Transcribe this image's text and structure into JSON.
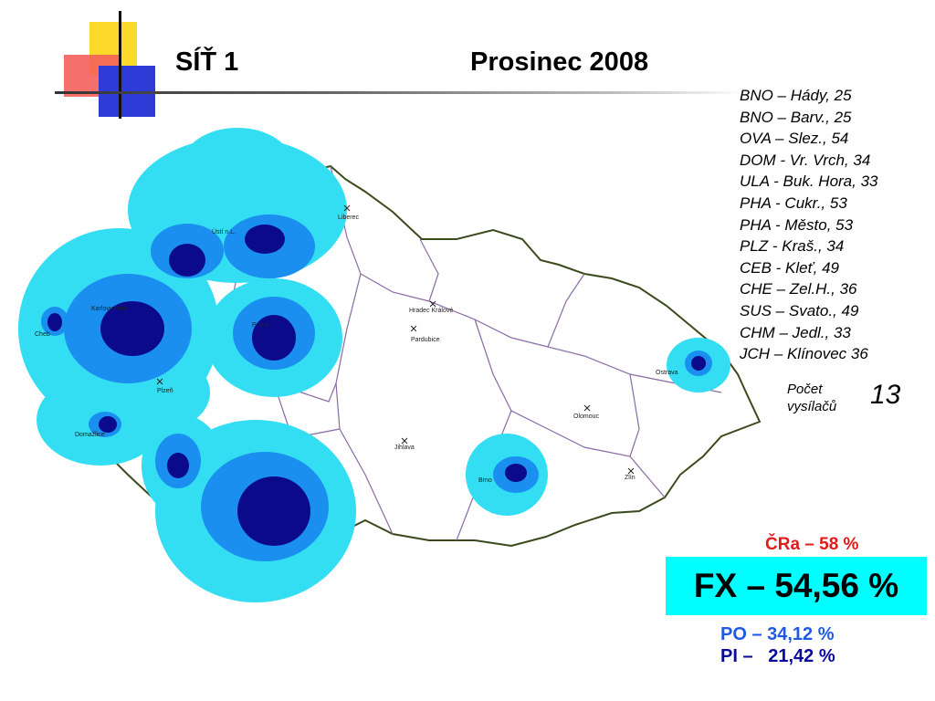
{
  "header": {
    "network": "SÍŤ 1",
    "date": "Prosinec 2008"
  },
  "transmitters": [
    "BNO – Hády, 25",
    "BNO – Barv., 25",
    "OVA – Slez., 54",
    "DOM - Vr. Vrch, 34",
    "ULA - Buk. Hora, 33",
    "PHA - Cukr., 53",
    "PHA - Město, 53",
    "PLZ - Kraš., 34",
    "CEB - Kleť, 49",
    "CHE – Zel.H., 36",
    "SUS – Svato., 49",
    "CHM – Jedl., 33",
    "JCH – Klínovec 36"
  ],
  "count": {
    "label_line1": "Počet",
    "label_line2": "vysílačů",
    "value": "13"
  },
  "coverage": {
    "cra": "ČRa – 58 %",
    "fx": "FX – 54,56 %",
    "po": "PO – 34,12 %",
    "pi": "PI –   21,42 %"
  },
  "map": {
    "cities": [
      "Liberec",
      "Hradec Králové",
      "Pardubice",
      "Olomouc",
      "Jihlava",
      "Zlín",
      "Plzeň",
      "Karlovy Vary",
      "Cheb",
      "Domažlice",
      "Ústí n.L.",
      "Brno",
      "Ostrava",
      "Praha"
    ],
    "colors": {
      "coverage_light": "#33ddf2",
      "coverage_mid": "#1a8ff0",
      "coverage_dark": "#0a0a8a",
      "border": "#3b4a1c",
      "regions": "#8a6aa6"
    }
  }
}
